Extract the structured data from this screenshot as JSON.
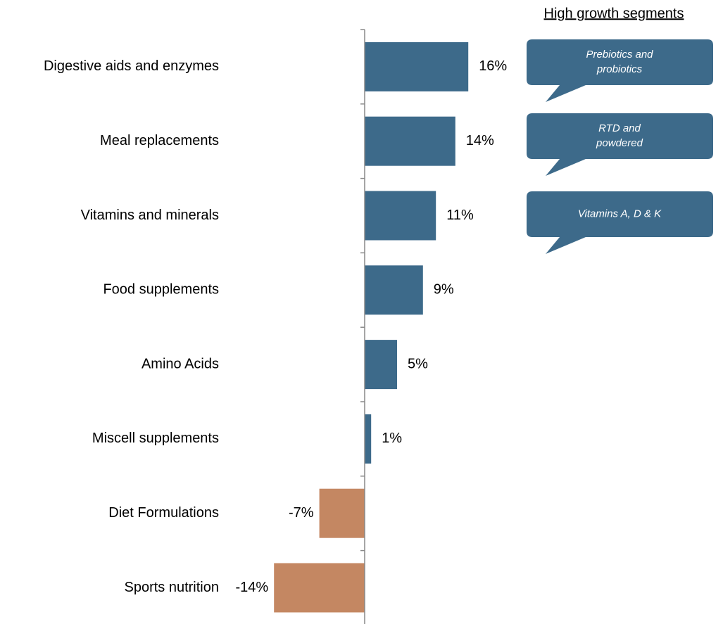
{
  "chart_data": {
    "type": "barh",
    "annotations": {
      "heading": "High growth segments",
      "callouts": [
        [
          "Prebiotics and",
          "probiotics"
        ],
        [
          "RTD and",
          "powdered"
        ],
        [
          "Vitamins A, D & K"
        ]
      ]
    },
    "categories": [
      "Digestive aids and enzymes",
      "Meal replacements",
      "Vitamins and minerals",
      "Food supplements",
      "Amino Acids",
      "Miscell supplements",
      "Diet Formulations",
      "Sports nutrition"
    ],
    "values": [
      16,
      14,
      11,
      9,
      5,
      1,
      -7,
      -14
    ],
    "value_labels": [
      "16%",
      "14%",
      "11%",
      "9%",
      "5%",
      "1%",
      "-7%",
      "-14%"
    ],
    "colors": [
      "#3d6a8a",
      "#3d6a8a",
      "#3d6a8a",
      "#3d6a8a",
      "#3d6a8a",
      "#3d6a8a",
      "#c48762",
      "#c48762"
    ],
    "callout_color": "#3d6a8a"
  }
}
